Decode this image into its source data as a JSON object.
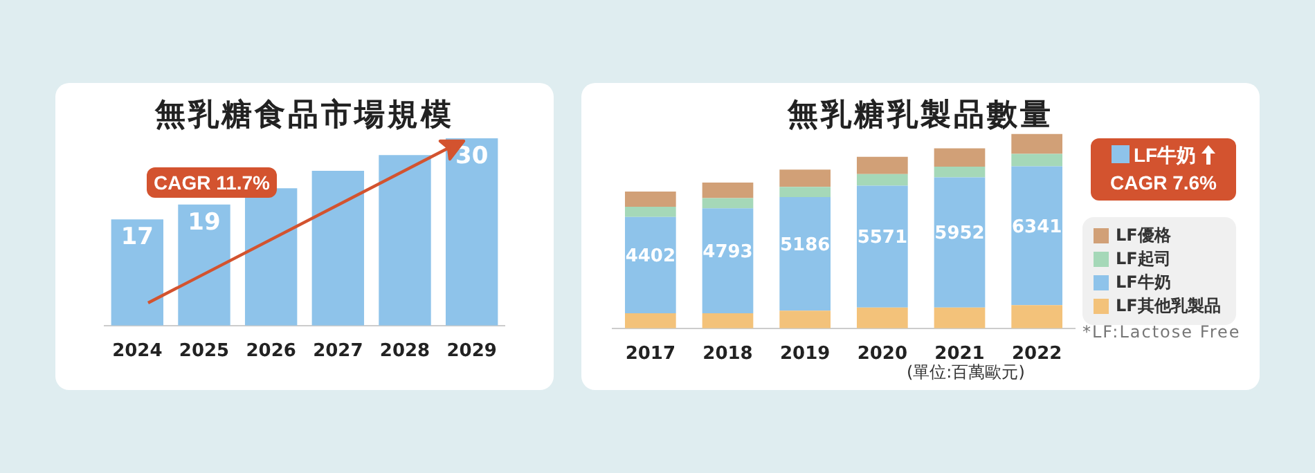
{
  "chart_data": [
    {
      "type": "bar",
      "title": "無乳糖食品市場規模",
      "categories": [
        "2024",
        "2025",
        "2026",
        "2027",
        "2028",
        "2029"
      ],
      "values": [
        17,
        19.4,
        22,
        24.8,
        27.3,
        30
      ],
      "value_labels": [
        "17",
        "19",
        null,
        null,
        null,
        "30"
      ],
      "color": "#8ec3ea",
      "annotations": [
        "CAGR 11.7%"
      ]
    },
    {
      "type": "bar",
      "title": "無乳糖乳製品數量",
      "categories": [
        "2017",
        "2018",
        "2019",
        "2020",
        "2021",
        "2022"
      ],
      "stacked": true,
      "legend": "right",
      "series": [
        {
          "name": "LF其他乳製品",
          "color": "#f3c27a",
          "values": [
            690,
            690,
            810,
            950,
            950,
            1060
          ]
        },
        {
          "name": "LF牛奶",
          "color": "#8ec3ea",
          "values": [
            4402,
            4793,
            5186,
            5571,
            5952,
            6341
          ],
          "value_labels": [
            "4402",
            "4793",
            "5186",
            "5571",
            "5952",
            "6341"
          ]
        },
        {
          "name": "LF起司",
          "color": "#a5d8b8",
          "values": [
            467,
            470,
            470,
            530,
            490,
            570
          ]
        },
        {
          "name": "LF優格",
          "color": "#d1a077",
          "values": [
            690,
            710,
            790,
            790,
            830,
            910
          ]
        }
      ],
      "annotations": [
        "LF牛奶",
        "CAGR 7.6%",
        "(單位:百萬歐元)",
        "*LF:Lactose Free"
      ]
    }
  ]
}
